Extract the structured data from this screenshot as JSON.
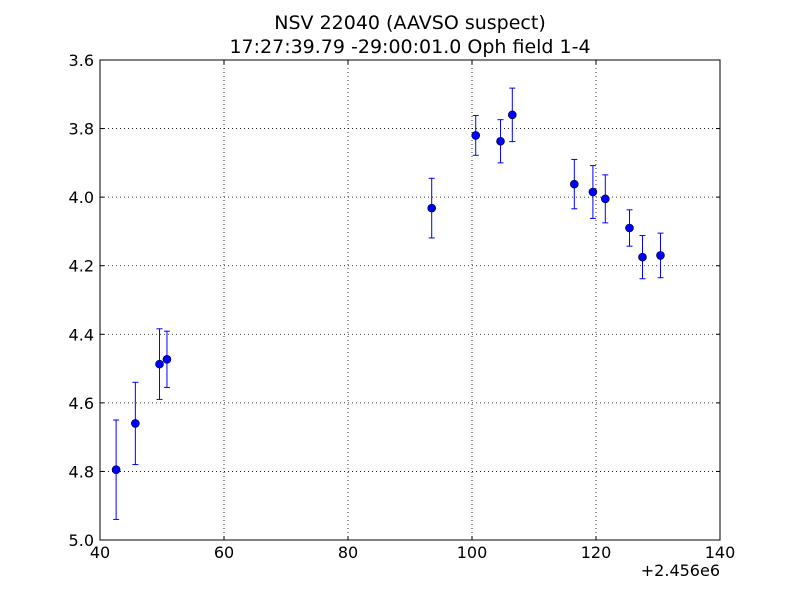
{
  "chart_data": {
    "type": "scatter",
    "title": "NSV 22040  (AAVSO suspect)",
    "subtitle": "17:27:39.79 -29:00:01.0 Oph field 1-4",
    "xlabel": "",
    "ylabel": "",
    "x_offset_label": "+2.456e6",
    "xlim": [
      40,
      140
    ],
    "ylim": [
      3.6,
      5.0
    ],
    "y_inverted": true,
    "grid": true,
    "marker_color": "#0000ff",
    "x_ticks": [
      "40",
      "60",
      "80",
      "100",
      "120",
      "140"
    ],
    "y_ticks": [
      "3.6",
      "3.8",
      "4.0",
      "4.2",
      "4.4",
      "4.6",
      "4.8",
      "5.0"
    ],
    "series": [
      {
        "x": [
          42.6,
          45.7,
          49.6,
          50.8,
          93.5,
          100.6,
          104.6,
          106.5,
          116.5,
          119.5,
          121.5,
          125.4,
          127.5,
          130.4
        ],
        "y": [
          4.795,
          4.66,
          4.487,
          4.473,
          4.032,
          3.82,
          3.837,
          3.76,
          3.962,
          3.985,
          4.005,
          4.09,
          4.175,
          4.17
        ],
        "yerr": [
          0.145,
          0.12,
          0.103,
          0.082,
          0.087,
          0.058,
          0.063,
          0.078,
          0.072,
          0.077,
          0.07,
          0.053,
          0.063,
          0.065
        ]
      }
    ]
  }
}
